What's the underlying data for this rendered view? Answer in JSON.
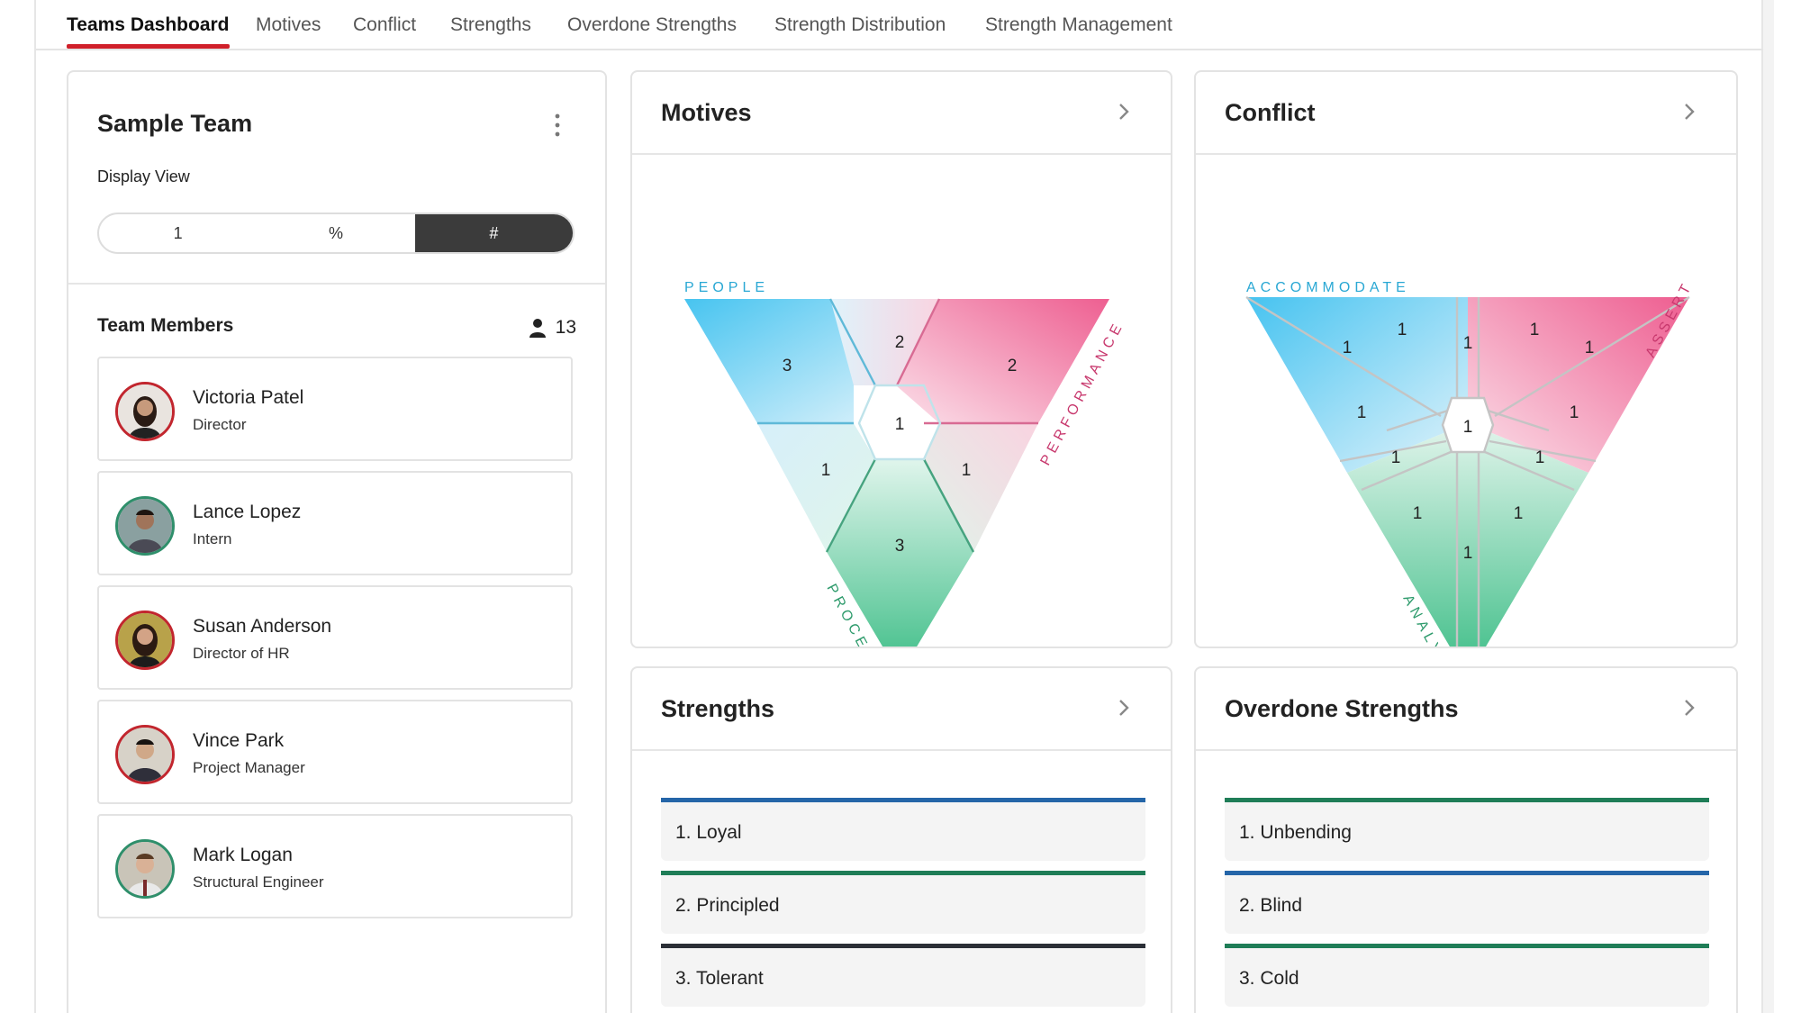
{
  "tabs": [
    {
      "label": "Teams Dashboard",
      "active": true
    },
    {
      "label": "Motives"
    },
    {
      "label": "Conflict"
    },
    {
      "label": "Strengths"
    },
    {
      "label": "Overdone Strengths"
    },
    {
      "label": "Strength Distribution"
    },
    {
      "label": "Strength Management"
    }
  ],
  "team": {
    "name": "Sample Team",
    "display_view_label": "Display View",
    "view_options": [
      "1",
      "%",
      "#"
    ],
    "selected_view": "#",
    "members_label": "Team Members",
    "member_count": "13",
    "members": [
      {
        "name": "Victoria Patel",
        "role": "Director"
      },
      {
        "name": "Lance Lopez",
        "role": "Intern"
      },
      {
        "name": "Susan Anderson",
        "role": "Director of HR"
      },
      {
        "name": "Vince Park",
        "role": "Project Manager"
      },
      {
        "name": "Mark Logan",
        "role": "Structural Engineer"
      }
    ]
  },
  "motives": {
    "title": "Motives",
    "labels": {
      "people": "PEOPLE",
      "performance": "PERFORMANCE",
      "process": "PROCESS"
    },
    "values": {
      "people": "3",
      "people_performance": "2",
      "performance": "2",
      "center": "1",
      "people_process": "1",
      "performance_process": "1",
      "process": "3"
    }
  },
  "conflict": {
    "title": "Conflict",
    "labels": {
      "accommodate": "ACCOMMODATE",
      "assert": "ASSERT",
      "analyze": "ANALYZE"
    },
    "values": [
      "1",
      "1",
      "1",
      "1",
      "1",
      "1",
      "1",
      "1",
      "1",
      "1",
      "1",
      "1",
      "1"
    ]
  },
  "strengths": {
    "title": "Strengths",
    "items": [
      "1. Loyal",
      "2. Principled",
      "3. Tolerant"
    ]
  },
  "overdone": {
    "title": "Overdone Strengths",
    "items": [
      "1. Unbending",
      "2. Blind",
      "3. Cold"
    ]
  },
  "colors": {
    "accent": "#d0202a",
    "people": "#4cc3ee",
    "performance": "#ee6a98",
    "process": "#3fbf8a",
    "dark": "#3b3b3b"
  }
}
